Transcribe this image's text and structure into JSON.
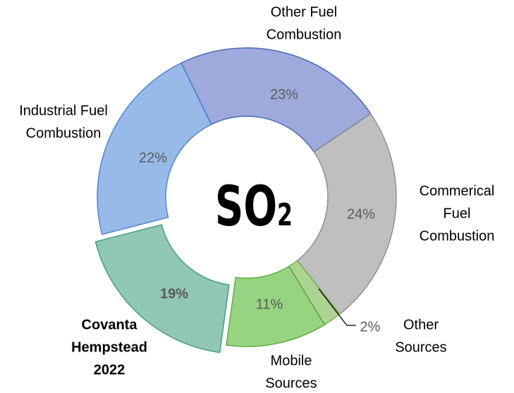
{
  "chart_data": {
    "type": "donut",
    "center_label": "SO",
    "center_subscript": "2",
    "categories": [
      [
        "Other Fuel",
        "Combustion"
      ],
      [
        "Commerical",
        "Fuel",
        "Combustion"
      ],
      [
        "Other",
        "Sources"
      ],
      [
        "Mobile",
        "Sources"
      ],
      [
        "Covanta",
        "Hempstead",
        "2022"
      ],
      [
        "Industrial Fuel",
        "Combustion"
      ]
    ],
    "values": [
      23,
      24,
      2,
      11,
      19,
      22
    ],
    "value_labels": [
      "23%",
      "24%",
      "2%",
      "11%",
      "19%",
      "22%"
    ],
    "colors": [
      "#98a6da",
      "#bcbcbc",
      "#a9d18e",
      "#92d27c",
      "#8cc5b2",
      "#93b7e8"
    ],
    "highlight": 4
  }
}
